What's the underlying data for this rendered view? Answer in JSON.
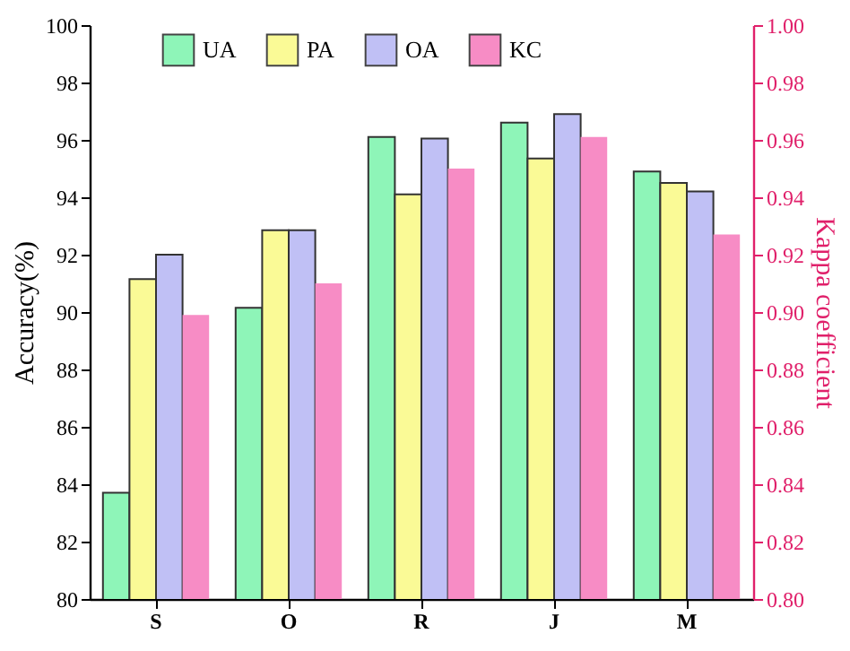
{
  "chart_data": {
    "type": "bar",
    "ylabel": "Accuracy(%)",
    "y2label": "Kappa coefficient",
    "categories": [
      "S",
      "O",
      "R",
      "J",
      "M"
    ],
    "series": [
      {
        "name": "UA",
        "color": "#8ef5b8",
        "values": [
          83.7,
          90.15,
          96.1,
          96.6,
          94.9
        ]
      },
      {
        "name": "PA",
        "color": "#fafa96",
        "values": [
          91.15,
          92.85,
          94.1,
          95.35,
          94.5
        ]
      },
      {
        "name": "OA",
        "color": "#c0c0f5",
        "values": [
          92.0,
          92.85,
          96.05,
          96.9,
          94.2
        ]
      },
      {
        "name": "KC",
        "color": "#f78cc5",
        "axis": "y2",
        "values": [
          0.899,
          0.91,
          0.95,
          0.961,
          0.927
        ]
      }
    ],
    "ylim": [
      80,
      100
    ],
    "yticks": [
      80,
      82,
      84,
      86,
      88,
      90,
      92,
      94,
      96,
      98,
      100
    ],
    "y2lim": [
      0.8,
      1.0
    ],
    "y2ticks": [
      {
        "value": 0.8,
        "label": "0.80"
      },
      {
        "value": 0.82,
        "label": "0.82"
      },
      {
        "value": 0.84,
        "label": "0.84"
      },
      {
        "value": 0.86,
        "label": "0.86"
      },
      {
        "value": 0.88,
        "label": "0.88"
      },
      {
        "value": 0.9,
        "label": "0.90"
      },
      {
        "value": 0.92,
        "label": "0.92"
      },
      {
        "value": 0.94,
        "label": "0.94"
      },
      {
        "value": 0.96,
        "label": "0.96"
      },
      {
        "value": 0.98,
        "label": "0.98"
      },
      {
        "value": 1.0,
        "label": "1.00"
      }
    ],
    "legend": "top",
    "grid": false
  }
}
